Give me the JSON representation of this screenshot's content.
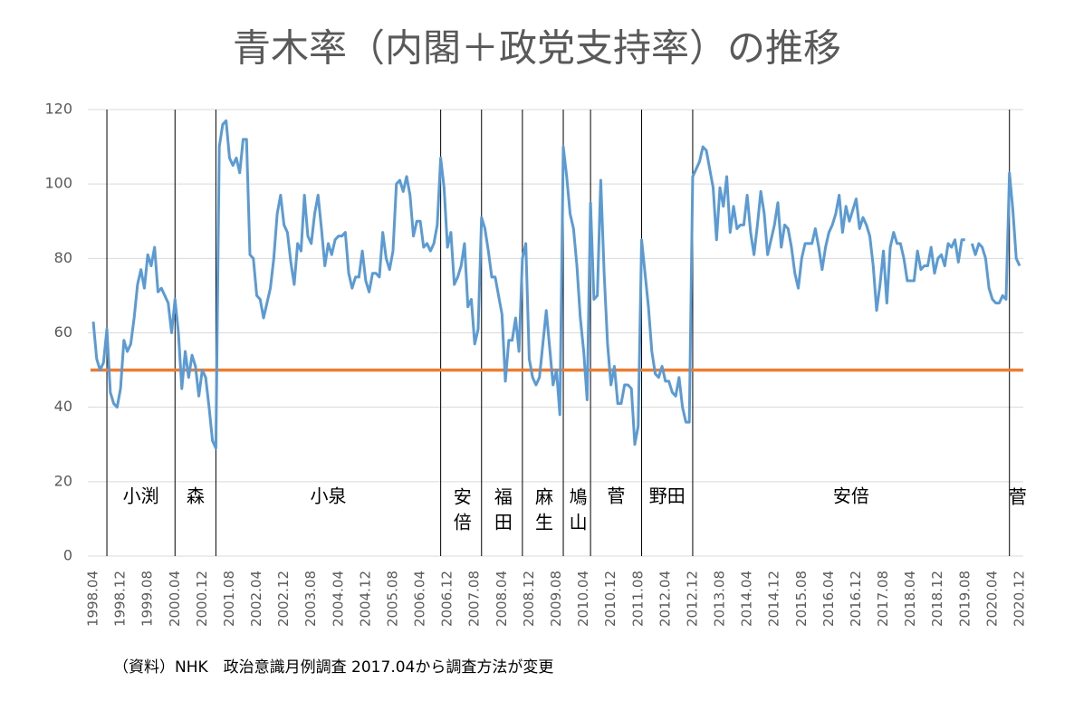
{
  "chart_data": {
    "type": "line",
    "title": "青木率（内閣＋政党支持率）の推移",
    "note": "（資料）NHK　政治意識月例調査  2017.04から調査方法が変更",
    "categories": [
      "1998.04",
      null,
      null,
      null,
      null,
      null,
      null,
      null,
      "1998.12",
      null,
      null,
      null,
      null,
      null,
      null,
      null,
      "1999.08",
      null,
      null,
      null,
      null,
      null,
      null,
      null,
      "2000.04",
      null,
      null,
      null,
      null,
      null,
      null,
      null,
      "2000.12",
      null,
      null,
      null,
      null,
      null,
      null,
      null,
      "2001.08",
      null,
      null,
      null,
      null,
      null,
      null,
      null,
      "2002.04",
      null,
      null,
      null,
      null,
      null,
      null,
      null,
      "2002.12",
      null,
      null,
      null,
      null,
      null,
      null,
      null,
      "2003.08",
      null,
      null,
      null,
      null,
      null,
      null,
      null,
      "2004.04",
      null,
      null,
      null,
      null,
      null,
      null,
      null,
      "2004.12",
      null,
      null,
      null,
      null,
      null,
      null,
      null,
      "2005.08",
      null,
      null,
      null,
      null,
      null,
      null,
      null,
      "2006.04",
      null,
      null,
      null,
      null,
      null,
      null,
      null,
      "2006.12",
      null,
      null,
      null,
      null,
      null,
      null,
      null,
      "2007.08",
      null,
      null,
      null,
      null,
      null,
      null,
      null,
      "2008.04",
      null,
      null,
      null,
      null,
      null,
      null,
      null,
      "2008.12",
      null,
      null,
      null,
      null,
      null,
      null,
      null,
      "2009.08",
      null,
      null,
      null,
      null,
      null,
      null,
      null,
      "2010.04",
      null,
      null,
      null,
      null,
      null,
      null,
      null,
      "2010.12",
      null,
      null,
      null,
      null,
      null,
      null,
      null,
      "2011.08",
      null,
      null,
      null,
      null,
      null,
      null,
      null,
      "2012.04",
      null,
      null,
      null,
      null,
      null,
      null,
      null,
      "2012.12",
      null,
      null,
      null,
      null,
      null,
      null,
      null,
      "2013.08",
      null,
      null,
      null,
      null,
      null,
      null,
      null,
      "2014.04",
      null,
      null,
      null,
      null,
      null,
      null,
      null,
      "2014.12",
      null,
      null,
      null,
      null,
      null,
      null,
      null,
      "2015.08",
      null,
      null,
      null,
      null,
      null,
      null,
      null,
      "2016.04",
      null,
      null,
      null,
      null,
      null,
      null,
      null,
      "2016.12",
      null,
      null,
      null,
      null,
      null,
      null,
      null,
      "2017.08",
      null,
      null,
      null,
      null,
      null,
      null,
      null,
      "2018.04",
      null,
      null,
      null,
      null,
      null,
      null,
      null,
      "2018.12",
      null,
      null,
      null,
      null,
      null,
      null,
      null,
      "2019.08",
      null,
      null,
      null,
      null,
      null,
      null,
      null,
      "2020.04",
      null,
      null,
      null,
      null,
      null,
      null,
      null,
      "2020.12"
    ],
    "series": [
      {
        "color": "#5b9bd5",
        "values": [
          63,
          53,
          50,
          52,
          61,
          44,
          41,
          40,
          45,
          58,
          55,
          57,
          64,
          73,
          77,
          72,
          81,
          78,
          83,
          71,
          72,
          70,
          68,
          60,
          69,
          60,
          45,
          55,
          48,
          54,
          51,
          43,
          50,
          48,
          40,
          31,
          29,
          110,
          116,
          117,
          107,
          105,
          107,
          103,
          112,
          112,
          81,
          80,
          70,
          69,
          64,
          68,
          72,
          80,
          92,
          97,
          89,
          87,
          79,
          73,
          84,
          82,
          97,
          86,
          84,
          92,
          97,
          88,
          78,
          84,
          81,
          85,
          86,
          86,
          87,
          76,
          72,
          75,
          75,
          82,
          74,
          71,
          76,
          76,
          75,
          87,
          80,
          77,
          82,
          100,
          101,
          98,
          102,
          97,
          86,
          90,
          90,
          83,
          84,
          82,
          84,
          89,
          107,
          99,
          83,
          87,
          73,
          75,
          78,
          84,
          67,
          69,
          57,
          61,
          91,
          88,
          82,
          75,
          75,
          70,
          65,
          47,
          58,
          58,
          64,
          55,
          80,
          84,
          53,
          48,
          46,
          48,
          57,
          66,
          56,
          46,
          50,
          38,
          110,
          102,
          92,
          88,
          78,
          64,
          55,
          42,
          95,
          69,
          70,
          101,
          76,
          57,
          46,
          51,
          41,
          41,
          46,
          46,
          45,
          30,
          35,
          85,
          76,
          67,
          55,
          49,
          48,
          51,
          47,
          47,
          44,
          43,
          48,
          40,
          36,
          36,
          102,
          104,
          106,
          110,
          109,
          104,
          99,
          85,
          99,
          94,
          102,
          87,
          94,
          88,
          89,
          89,
          97,
          87,
          81,
          89,
          98,
          92,
          81,
          85,
          89,
          95,
          83,
          89,
          88,
          83,
          76,
          72,
          80,
          84,
          84,
          84,
          88,
          83,
          77,
          83,
          87,
          89,
          92,
          97,
          87,
          94,
          90,
          93,
          96,
          88,
          91,
          89,
          86,
          78,
          66,
          73,
          82,
          68,
          83,
          87,
          84,
          84,
          80,
          74,
          74,
          74,
          82,
          77,
          78,
          78,
          83,
          76,
          80,
          81,
          78,
          84,
          83,
          85,
          79,
          85,
          85,
          null,
          84,
          81,
          84,
          83,
          80,
          72,
          69,
          68,
          68,
          70,
          69,
          103,
          93,
          80,
          78
        ]
      }
    ],
    "reference_line": {
      "value": 50,
      "color": "#ed7d31"
    },
    "eras": [
      {
        "name": "小渕",
        "start": "1998.08"
      },
      {
        "name": "森",
        "start": "2000.04"
      },
      {
        "name": "小泉",
        "start": "2001.04"
      },
      {
        "name": "安倍",
        "start": "2006.10"
      },
      {
        "name": "福田",
        "start": "2007.10"
      },
      {
        "name": "麻生",
        "start": "2008.10"
      },
      {
        "name": "鳩山",
        "start": "2009.10"
      },
      {
        "name": "菅",
        "start": "2010.06"
      },
      {
        "name": "野田",
        "start": "2011.09"
      },
      {
        "name": "安倍",
        "start": "2012.12"
      },
      {
        "name": "菅",
        "start": "2020.09"
      }
    ],
    "ylim": [
      0,
      120
    ],
    "yticks": [
      0,
      20,
      40,
      60,
      80,
      100,
      120
    ],
    "grid": true
  }
}
